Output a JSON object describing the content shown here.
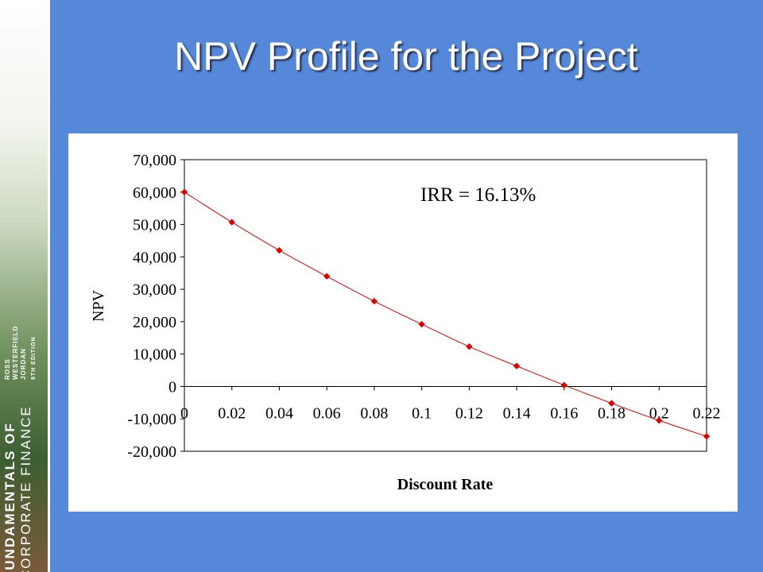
{
  "slide": {
    "title": "NPV Profile for the Project"
  },
  "book": {
    "title_line1": "FUNDAMENTALS OF",
    "title_line2": "CORPORATE FINANCE",
    "authors": [
      "ROSS",
      "WESTERFIELD",
      "JORDAN"
    ],
    "edition": "8TH EDITION"
  },
  "chart_data": {
    "type": "scatter",
    "title": "",
    "xlabel": "Discount Rate",
    "ylabel": "NPV",
    "annotation": "IRR = 16.13%",
    "xlim": [
      0,
      0.22
    ],
    "ylim": [
      -20000,
      70000
    ],
    "xticks": [
      "0",
      "0.02",
      "0.04",
      "0.06",
      "0.08",
      "0.1",
      "0.12",
      "0.14",
      "0.16",
      "0.18",
      "0.2",
      "0.22"
    ],
    "yticks": [
      "70,000",
      "60,000",
      "50,000",
      "40,000",
      "30,000",
      "20,000",
      "10,000",
      "0",
      "-10,000",
      "-20,000"
    ],
    "grid": false,
    "legend": "none",
    "series_color": "#dd0000",
    "x": [
      0,
      0.02,
      0.04,
      0.06,
      0.08,
      0.1,
      0.12,
      0.14,
      0.16,
      0.18,
      0.2,
      0.22
    ],
    "y": [
      60000,
      50700,
      42000,
      34000,
      26300,
      19200,
      12300,
      6300,
      400,
      -5200,
      -10500,
      -15400
    ]
  }
}
